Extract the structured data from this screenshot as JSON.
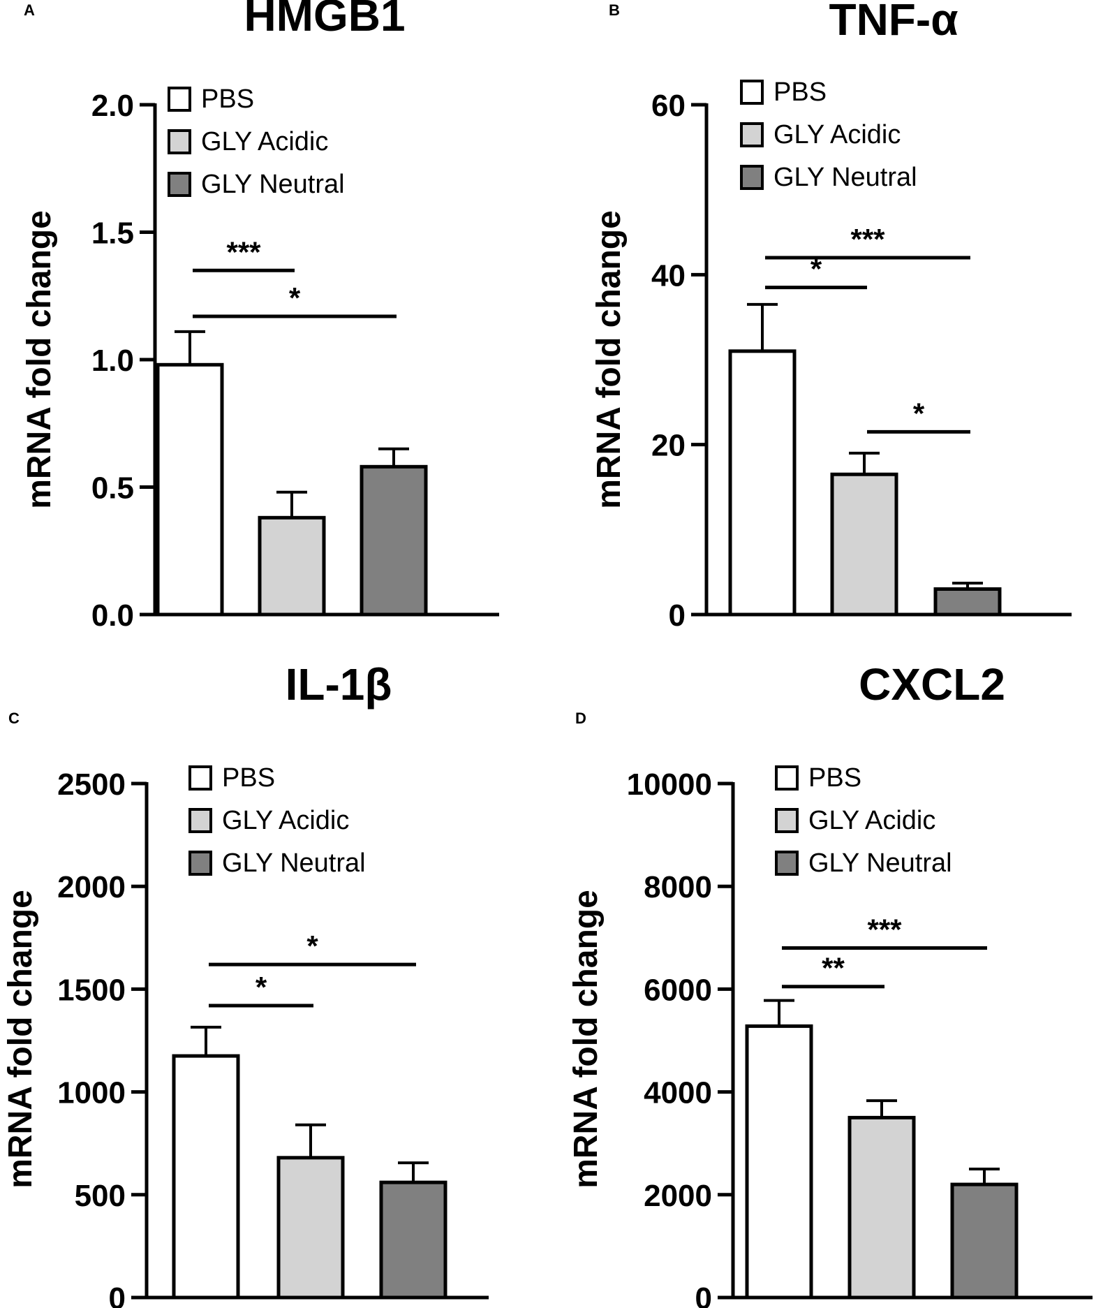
{
  "series_styles": [
    {
      "name": "PBS",
      "color": "#ffffff"
    },
    {
      "name": "GLY Acidic",
      "color": "#d3d3d3"
    },
    {
      "name": "GLY Neutral",
      "color": "#808080"
    }
  ],
  "chart_data": [
    {
      "type": "bar",
      "panel": "A",
      "title": "HMGB1",
      "ylabel": "mRNA fold change",
      "ylim": [
        0,
        2.0
      ],
      "yticks": [
        "0.0",
        "0.5",
        "1.0",
        "1.5",
        "2.0"
      ],
      "ytick_values": [
        0,
        0.5,
        1.0,
        1.5,
        2.0
      ],
      "categories": [
        "PBS",
        "GLY Acidic",
        "GLY Neutral"
      ],
      "values": [
        0.98,
        0.38,
        0.58
      ],
      "errors": [
        0.13,
        0.1,
        0.07
      ],
      "legend": [
        "PBS",
        "GLY Acidic",
        "GLY Neutral"
      ],
      "significance": [
        {
          "from": 0,
          "to": 1,
          "y": 1.35,
          "label": "***"
        },
        {
          "from": 0,
          "to": 2,
          "y": 1.17,
          "label": "*"
        }
      ]
    },
    {
      "type": "bar",
      "panel": "B",
      "title": "TNF-α",
      "ylabel": "mRNA fold change",
      "ylim": [
        0,
        60
      ],
      "yticks": [
        "0",
        "20",
        "40",
        "60"
      ],
      "ytick_values": [
        0,
        20,
        40,
        60
      ],
      "categories": [
        "PBS",
        "GLY Acidic",
        "GLY Neutral"
      ],
      "values": [
        31,
        16.5,
        3
      ],
      "errors": [
        5.5,
        2.5,
        0.7
      ],
      "legend": [
        "PBS",
        "GLY Acidic",
        "GLY Neutral"
      ],
      "significance": [
        {
          "from": 0,
          "to": 2,
          "y": 42,
          "label": "***"
        },
        {
          "from": 0,
          "to": 1,
          "y": 38.5,
          "label": "*"
        },
        {
          "from": 1,
          "to": 2,
          "y": 21.5,
          "label": "*"
        }
      ]
    },
    {
      "type": "bar",
      "panel": "C",
      "title": "IL-1β",
      "ylabel": "mRNA fold change",
      "ylim": [
        0,
        2500
      ],
      "yticks": [
        "0",
        "500",
        "1000",
        "1500",
        "2000",
        "2500"
      ],
      "ytick_values": [
        0,
        500,
        1000,
        1500,
        2000,
        2500
      ],
      "categories": [
        "PBS",
        "GLY Acidic",
        "GLY Neutral"
      ],
      "values": [
        1175,
        680,
        560
      ],
      "errors": [
        140,
        160,
        95
      ],
      "legend": [
        "PBS",
        "GLY Acidic",
        "GLY Neutral"
      ],
      "significance": [
        {
          "from": 0,
          "to": 2,
          "y": 1620,
          "label": "*"
        },
        {
          "from": 0,
          "to": 1,
          "y": 1420,
          "label": "*"
        }
      ]
    },
    {
      "type": "bar",
      "panel": "D",
      "title": "CXCL2",
      "ylabel": "mRNA fold change",
      "ylim": [
        0,
        10000
      ],
      "yticks": [
        "0",
        "2000",
        "4000",
        "6000",
        "8000",
        "10000"
      ],
      "ytick_values": [
        0,
        2000,
        4000,
        6000,
        8000,
        10000
      ],
      "categories": [
        "PBS",
        "GLY Acidic",
        "GLY Neutral"
      ],
      "values": [
        5280,
        3500,
        2200
      ],
      "errors": [
        500,
        330,
        300
      ],
      "legend": [
        "PBS",
        "GLY Acidic",
        "GLY Neutral"
      ],
      "significance": [
        {
          "from": 0,
          "to": 2,
          "y": 6800,
          "label": "***"
        },
        {
          "from": 0,
          "to": 1,
          "y": 6050,
          "label": "**"
        }
      ]
    }
  ]
}
